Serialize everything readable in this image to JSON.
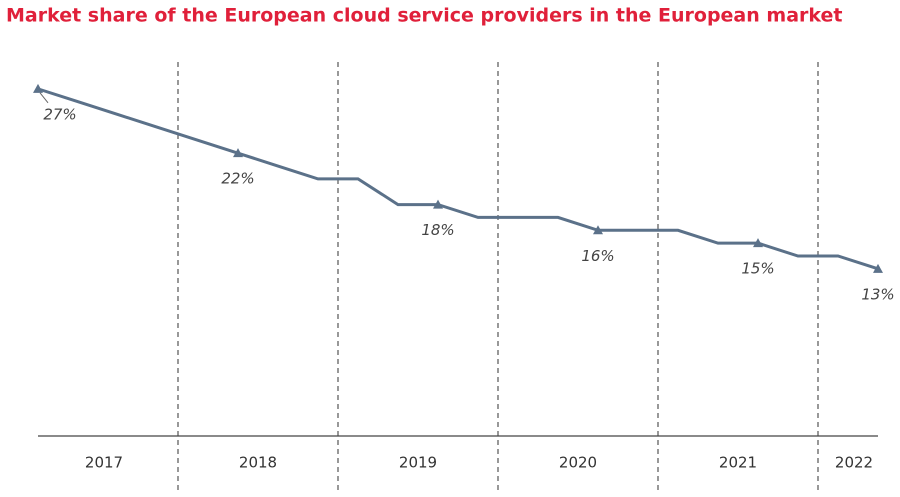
{
  "chart_data": {
    "type": "line",
    "title": "Market share of the European cloud service providers in the European market",
    "title_color": "#e0203a",
    "color": "#5b7189",
    "ylim": [
      0,
      30
    ],
    "groups": [
      {
        "label": "2017",
        "values": [
          27,
          26,
          25,
          24
        ],
        "value_labels": [
          "27%",
          null,
          null,
          null
        ]
      },
      {
        "label": "2018",
        "values": [
          23,
          22,
          21,
          20
        ],
        "value_labels": [
          null,
          "22%",
          null,
          null
        ]
      },
      {
        "label": "2019",
        "values": [
          20,
          18,
          18,
          17
        ],
        "value_labels": [
          null,
          null,
          "18%",
          null
        ]
      },
      {
        "label": "2020",
        "values": [
          17,
          17,
          16,
          16
        ],
        "value_labels": [
          null,
          null,
          "16%",
          null
        ]
      },
      {
        "label": "2021",
        "values": [
          16,
          15,
          15,
          14
        ],
        "value_labels": [
          null,
          null,
          "15%",
          null
        ]
      },
      {
        "label": "2022",
        "values": [
          14,
          13
        ],
        "value_labels": [
          null,
          "13%"
        ]
      }
    ]
  }
}
